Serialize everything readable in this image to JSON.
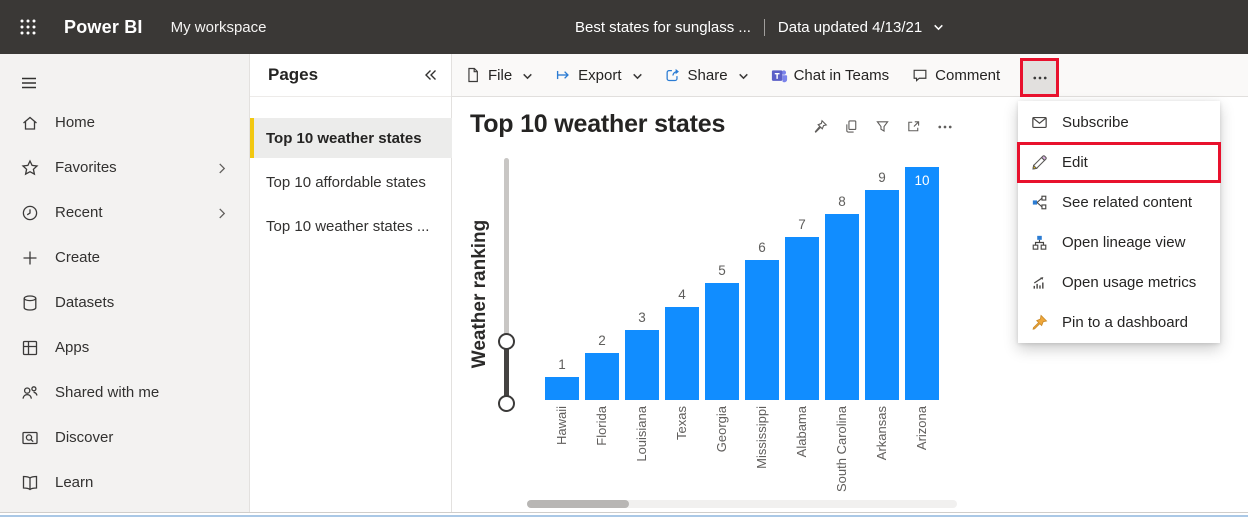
{
  "top_bar": {
    "app_name": "Power BI",
    "workspace_name": "My workspace",
    "report_title": "Best states for sunglass ...",
    "data_updated_label": "Data updated 4/13/21",
    "waffle_icon": "waffle-icon",
    "chevron_icon": "chevron-down-icon"
  },
  "left_nav": {
    "menu_icon": "hamburger-icon",
    "items": [
      {
        "label": "Home",
        "icon": "home-icon",
        "chevron": false
      },
      {
        "label": "Favorites",
        "icon": "star-icon",
        "chevron": true
      },
      {
        "label": "Recent",
        "icon": "clock-icon",
        "chevron": true
      },
      {
        "label": "Create",
        "icon": "plus-icon",
        "chevron": false
      },
      {
        "label": "Datasets",
        "icon": "datasets-icon",
        "chevron": false
      },
      {
        "label": "Apps",
        "icon": "apps-icon",
        "chevron": false
      },
      {
        "label": "Shared with me",
        "icon": "shared-icon",
        "chevron": false
      },
      {
        "label": "Discover",
        "icon": "discover-icon",
        "chevron": false
      },
      {
        "label": "Learn",
        "icon": "learn-icon",
        "chevron": false
      }
    ]
  },
  "pages_panel": {
    "title": "Pages",
    "collapse_icon": "double-chevron-left-icon",
    "items": [
      {
        "label": "Top 10 weather states",
        "selected": true
      },
      {
        "label": "Top 10 affordable states",
        "selected": false
      },
      {
        "label": "Top 10 weather states ...",
        "selected": false
      }
    ]
  },
  "toolbar": {
    "buttons": [
      {
        "label": "File",
        "icon": "file-icon",
        "chevron": true
      },
      {
        "label": "Export",
        "icon": "export-icon",
        "chevron": true,
        "icon_color": "blue"
      },
      {
        "label": "Share",
        "icon": "share-icon",
        "chevron": true,
        "icon_color": "blue"
      },
      {
        "label": "Chat in Teams",
        "icon": "teams-icon",
        "chevron": false
      },
      {
        "label": "Comment",
        "icon": "comment-icon",
        "chevron": false
      }
    ],
    "more_options_icon": "more-options-icon"
  },
  "context_menu": {
    "items": [
      {
        "label": "Subscribe",
        "icon": "envelope-icon",
        "highlighted": false
      },
      {
        "label": "Edit",
        "icon": "pencil-icon",
        "highlighted": true
      },
      {
        "label": "See related content",
        "icon": "related-content-icon",
        "highlighted": false
      },
      {
        "label": "Open lineage view",
        "icon": "lineage-icon",
        "highlighted": false
      },
      {
        "label": "Open usage metrics",
        "icon": "usage-metrics-icon",
        "highlighted": false
      },
      {
        "label": "Pin to a dashboard",
        "icon": "pushpin-icon",
        "highlighted": false
      }
    ]
  },
  "visual": {
    "header_icons": [
      "pin-icon",
      "copy-icon",
      "filter-icon",
      "focus-mode-icon",
      "more-options-icon"
    ]
  },
  "chart_data": {
    "type": "bar",
    "title": "Top 10 weather states",
    "categories": [
      "Hawaii",
      "Florida",
      "Louisiana",
      "Texas",
      "Georgia",
      "Mississippi",
      "Alabama",
      "South Carolina",
      "Arkansas",
      "Arizona"
    ],
    "values": [
      1,
      2,
      3,
      4,
      5,
      6,
      7,
      8,
      9,
      10
    ],
    "xlabel": "",
    "ylabel": "Weather ranking",
    "ylim": [
      0,
      10
    ],
    "grid": false,
    "legend": false,
    "data_labels": true,
    "x_tick_rotation": -90,
    "bar_color": "#118DFF"
  },
  "annotations": {
    "color": "#E8112D",
    "highlighted_elements": [
      "more-options-button",
      "menu-item-edit"
    ]
  },
  "colors": {
    "top_bar_bg": "#3A3836",
    "sidebar_bg": "#F3F2F1",
    "selected_page_accent": "#F2C811",
    "bar_blue": "#118DFF",
    "annotation_red": "#E8112D",
    "toolbar_icon_blue": "#2B7CD3",
    "teams_purple": "#5B5FC7"
  }
}
